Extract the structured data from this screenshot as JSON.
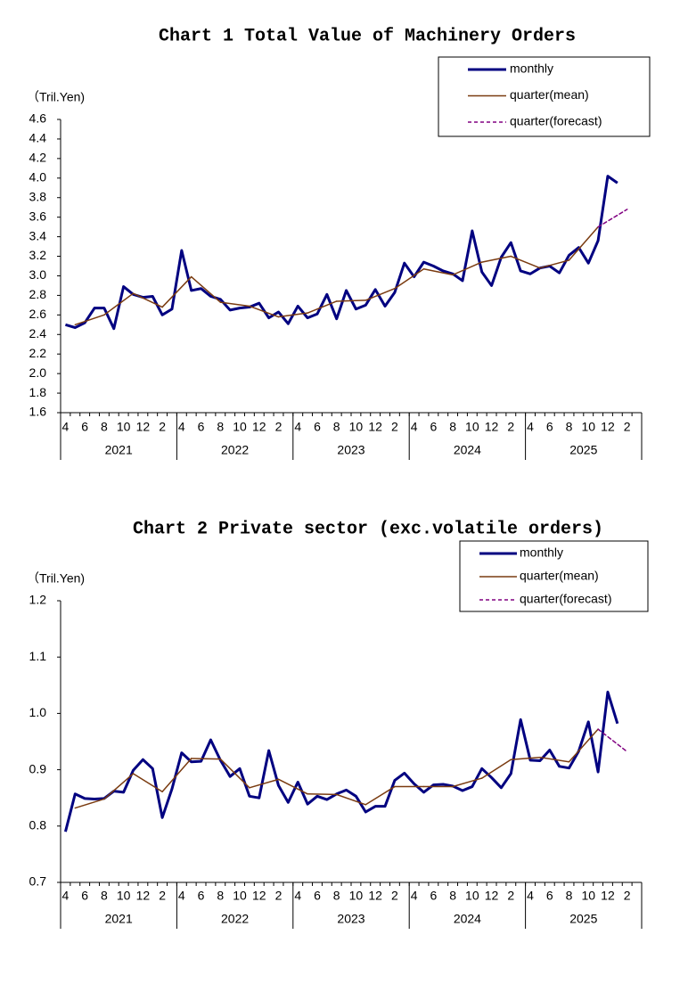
{
  "chart_data": [
    {
      "type": "line",
      "title": "Chart 1 Total Value of Machinery Orders",
      "ylabel": "（Tril.Yen)",
      "categories": [
        "4",
        null,
        "6",
        null,
        "8",
        null,
        "10",
        null,
        "12",
        null,
        "2",
        null,
        "4",
        null,
        "6",
        null,
        "8",
        null,
        "10",
        null,
        "12",
        null,
        "2",
        null,
        "4",
        null,
        "6",
        null,
        "8",
        null,
        "10",
        null,
        "12",
        null,
        "2",
        null,
        "4",
        null,
        "6",
        null,
        "8",
        null,
        "10",
        null,
        "12",
        null,
        "2",
        null,
        "4",
        null,
        "6",
        null,
        "8",
        null,
        "10",
        null,
        "12",
        null,
        "2",
        null
      ],
      "years": [
        "2021",
        "2022",
        "2023",
        "2024",
        "2025"
      ],
      "ylim": [
        1.6,
        4.6
      ],
      "yticks": [
        1.6,
        1.8,
        {
          "value": 2,
          "label": "2.0"
        },
        2.2,
        2.4,
        2.6,
        2.8,
        {
          "value": 3,
          "label": "3.0"
        },
        3.2,
        3.4,
        3.6,
        3.8,
        {
          "value": 4,
          "label": "4.0"
        },
        4.2,
        4.4,
        4.6
      ],
      "legend": "upper right",
      "series": [
        {
          "name": "monthly",
          "color": "#000080",
          "linestyle": "solid",
          "values": [
            2.5,
            2.47,
            2.52,
            2.67,
            2.67,
            2.46,
            2.89,
            2.81,
            2.78,
            2.79,
            2.6,
            2.66,
            3.26,
            2.85,
            2.87,
            2.79,
            2.76,
            2.65,
            2.67,
            2.68,
            2.72,
            2.57,
            2.63,
            2.51,
            2.69,
            2.57,
            2.61,
            2.81,
            2.56,
            2.85,
            2.66,
            2.7,
            2.86,
            2.69,
            2.83,
            3.13,
            2.99,
            3.14,
            3.1,
            3.05,
            3.02,
            2.95,
            3.46,
            3.04,
            2.9,
            3.19,
            3.34,
            3.05,
            3.02,
            3.08,
            3.1,
            3.03,
            3.21,
            3.29,
            3.13,
            3.36,
            4.02,
            3.95,
            null,
            null
          ]
        },
        {
          "name": "quarter(mean)",
          "color": "#7a3b10",
          "linestyle": "solid",
          "values": [
            null,
            2.5,
            null,
            null,
            2.6,
            null,
            null,
            2.82,
            null,
            null,
            2.68,
            null,
            null,
            2.99,
            null,
            null,
            2.73,
            null,
            null,
            2.69,
            null,
            null,
            2.58,
            null,
            null,
            2.62,
            null,
            null,
            2.74,
            null,
            null,
            2.75,
            null,
            null,
            2.87,
            null,
            null,
            3.07,
            null,
            null,
            3.01,
            null,
            null,
            3.14,
            null,
            null,
            3.2,
            null,
            null,
            3.08,
            null,
            null,
            3.16,
            null,
            null,
            3.5,
            null,
            null,
            null,
            null
          ]
        },
        {
          "name": "quarter(forecast)",
          "color": "#800080",
          "linestyle": "dashed",
          "values": [
            null,
            null,
            null,
            null,
            null,
            null,
            null,
            null,
            null,
            null,
            null,
            null,
            null,
            null,
            null,
            null,
            null,
            null,
            null,
            null,
            null,
            null,
            null,
            null,
            null,
            null,
            null,
            null,
            null,
            null,
            null,
            null,
            null,
            null,
            null,
            null,
            null,
            null,
            null,
            null,
            null,
            null,
            null,
            null,
            null,
            null,
            null,
            null,
            null,
            null,
            null,
            null,
            null,
            null,
            null,
            3.5,
            null,
            null,
            3.68,
            null
          ]
        }
      ]
    },
    {
      "type": "line",
      "title": "Chart 2 Private sector (exc.volatile orders)",
      "ylabel": "（Tril.Yen)",
      "categories": [
        "4",
        null,
        "6",
        null,
        "8",
        null,
        "10",
        null,
        "12",
        null,
        "2",
        null,
        "4",
        null,
        "6",
        null,
        "8",
        null,
        "10",
        null,
        "12",
        null,
        "2",
        null,
        "4",
        null,
        "6",
        null,
        "8",
        null,
        "10",
        null,
        "12",
        null,
        "2",
        null,
        "4",
        null,
        "6",
        null,
        "8",
        null,
        "10",
        null,
        "12",
        null,
        "2",
        null,
        "4",
        null,
        "6",
        null,
        "8",
        null,
        "10",
        null,
        "12",
        null,
        "2",
        null
      ],
      "years": [
        "2021",
        "2022",
        "2023",
        "2024",
        "2025"
      ],
      "ylim": [
        0.7,
        1.2
      ],
      "yticks": [
        0.7,
        0.8,
        0.9,
        {
          "value": 1,
          "label": "1.0"
        },
        1.1,
        1.2
      ],
      "legend": "upper right",
      "series": [
        {
          "name": "monthly",
          "color": "#000080",
          "linestyle": "solid",
          "values": [
            0.79,
            0.857,
            0.849,
            0.848,
            0.849,
            0.862,
            0.86,
            0.899,
            0.918,
            0.902,
            0.815,
            0.866,
            0.93,
            0.914,
            0.915,
            0.953,
            0.917,
            0.888,
            0.902,
            0.853,
            0.85,
            0.934,
            0.872,
            0.842,
            0.878,
            0.839,
            0.853,
            0.847,
            0.857,
            0.864,
            0.853,
            0.825,
            0.835,
            0.835,
            0.881,
            0.894,
            0.875,
            0.86,
            0.873,
            0.874,
            0.871,
            0.863,
            0.87,
            0.902,
            0.886,
            0.868,
            0.893,
            0.989,
            0.917,
            0.916,
            0.935,
            0.906,
            0.903,
            0.933,
            0.985,
            0.896,
            1.038,
            0.982,
            null,
            null
          ]
        },
        {
          "name": "quarter(mean)",
          "color": "#7a3b10",
          "linestyle": "solid",
          "values": [
            null,
            0.832,
            null,
            null,
            0.848,
            null,
            null,
            0.893,
            null,
            null,
            0.861,
            null,
            null,
            0.92,
            null,
            null,
            0.919,
            null,
            null,
            0.868,
            null,
            null,
            0.883,
            null,
            null,
            0.857,
            null,
            null,
            0.856,
            null,
            null,
            0.838,
            null,
            null,
            0.87,
            null,
            null,
            0.87,
            null,
            null,
            0.87,
            null,
            null,
            0.885,
            null,
            null,
            0.918,
            null,
            null,
            0.922,
            null,
            null,
            0.914,
            null,
            null,
            0.972,
            null,
            null,
            null,
            null
          ]
        },
        {
          "name": "quarter(forecast)",
          "color": "#800080",
          "linestyle": "dashed",
          "values": [
            null,
            null,
            null,
            null,
            null,
            null,
            null,
            null,
            null,
            null,
            null,
            null,
            null,
            null,
            null,
            null,
            null,
            null,
            null,
            null,
            null,
            null,
            null,
            null,
            null,
            null,
            null,
            null,
            null,
            null,
            null,
            null,
            null,
            null,
            null,
            null,
            null,
            null,
            null,
            null,
            null,
            null,
            null,
            null,
            null,
            null,
            null,
            null,
            null,
            null,
            null,
            null,
            null,
            null,
            null,
            0.972,
            null,
            null,
            0.932,
            null
          ]
        }
      ]
    }
  ]
}
